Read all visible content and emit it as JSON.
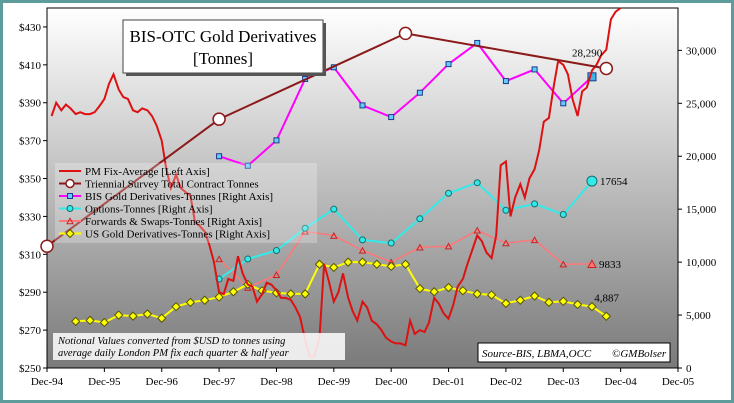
{
  "colors": {
    "plot_top": "#ffffff",
    "plot_bottom": "#7a7a7a",
    "frame": "#5e9b9b",
    "pm_fix": "#dd1111",
    "triennial": "#8b1a1a",
    "bis": "#ff00ff",
    "options": "#33eaea",
    "forwards": "#ff7777",
    "us": "#ffff00"
  },
  "chart_data": {
    "type": "line",
    "title": "BIS-OTC Gold Derivatives",
    "subtitle": "[Tonnes]",
    "left_axis": {
      "min": 250,
      "max": 440,
      "ticks": [
        "$250",
        "$270",
        "$290",
        "$310",
        "$330",
        "$350",
        "$370",
        "$390",
        "$410",
        "$430"
      ]
    },
    "right_axis": {
      "min": 0,
      "max": 34000,
      "ticks": [
        "0",
        "5,000",
        "10,000",
        "15,000",
        "20,000",
        "25,000",
        "30,000"
      ]
    },
    "x_axis": {
      "min": 1994.92,
      "max": 2005.92,
      "ticks": [
        "Dec-94",
        "Dec-95",
        "Dec-96",
        "Dec-97",
        "Dec-98",
        "Dec-99",
        "Dec-00",
        "Dec-01",
        "Dec-02",
        "Dec-03",
        "Dec-04",
        "Dec-05"
      ]
    },
    "grid": false,
    "legend_position": "left-middle",
    "legend": [
      "PM Fix-Average [Left Axis]",
      "Triennial Survey Total Contract Tonnes",
      "BIS Gold Derivatives-Tonnes [Right Axis]",
      "Options-Tonnes [Right Axis]",
      "Forwards & Swaps-Tonnes [Right Axis]",
      "US Gold Derivatives-Tonnes [Right Axis]"
    ],
    "series": [
      {
        "name": "PM Fix-Average [Left Axis]",
        "axis": "left",
        "points": [
          [
            1995.0,
            383
          ],
          [
            1995.08,
            390
          ],
          [
            1995.17,
            386
          ],
          [
            1995.25,
            389
          ],
          [
            1995.33,
            387
          ],
          [
            1995.42,
            384
          ],
          [
            1995.5,
            385
          ],
          [
            1995.58,
            384
          ],
          [
            1995.67,
            384
          ],
          [
            1995.75,
            385
          ],
          [
            1995.83,
            388
          ],
          [
            1995.92,
            392
          ],
          [
            1996.0,
            400
          ],
          [
            1996.08,
            405
          ],
          [
            1996.17,
            397
          ],
          [
            1996.25,
            393
          ],
          [
            1996.33,
            392
          ],
          [
            1996.42,
            386
          ],
          [
            1996.5,
            385
          ],
          [
            1996.58,
            387
          ],
          [
            1996.67,
            386
          ],
          [
            1996.75,
            383
          ],
          [
            1996.83,
            378
          ],
          [
            1996.92,
            370
          ],
          [
            1997.0,
            355
          ],
          [
            1997.08,
            345
          ],
          [
            1997.17,
            352
          ],
          [
            1997.25,
            345
          ],
          [
            1997.33,
            343
          ],
          [
            1997.42,
            341
          ],
          [
            1997.5,
            327
          ],
          [
            1997.58,
            325
          ],
          [
            1997.67,
            322
          ],
          [
            1997.75,
            315
          ],
          [
            1997.83,
            306
          ],
          [
            1997.92,
            290
          ],
          [
            1998.0,
            289
          ],
          [
            1998.08,
            297
          ],
          [
            1998.17,
            296
          ],
          [
            1998.25,
            309
          ],
          [
            1998.33,
            300
          ],
          [
            1998.42,
            294
          ],
          [
            1998.5,
            293
          ],
          [
            1998.58,
            285
          ],
          [
            1998.67,
            289
          ],
          [
            1998.75,
            295
          ],
          [
            1998.83,
            294
          ],
          [
            1998.92,
            291
          ],
          [
            1999.0,
            287
          ],
          [
            1999.08,
            287
          ],
          [
            1999.17,
            286
          ],
          [
            1999.25,
            282
          ],
          [
            1999.33,
            277
          ],
          [
            1999.42,
            265
          ],
          [
            1999.5,
            256
          ],
          [
            1999.58,
            256
          ],
          [
            1999.67,
            266
          ],
          [
            1999.75,
            305
          ],
          [
            1999.83,
            296
          ],
          [
            1999.92,
            285
          ],
          [
            2000.0,
            290
          ],
          [
            2000.08,
            300
          ],
          [
            2000.17,
            287
          ],
          [
            2000.25,
            280
          ],
          [
            2000.33,
            275
          ],
          [
            2000.42,
            285
          ],
          [
            2000.5,
            282
          ],
          [
            2000.58,
            275
          ],
          [
            2000.67,
            273
          ],
          [
            2000.75,
            270
          ],
          [
            2000.83,
            266
          ],
          [
            2000.92,
            264
          ],
          [
            2001.0,
            263
          ],
          [
            2001.08,
            263
          ],
          [
            2001.17,
            262
          ],
          [
            2001.25,
            275
          ],
          [
            2001.33,
            268
          ],
          [
            2001.42,
            270
          ],
          [
            2001.5,
            269
          ],
          [
            2001.58,
            274
          ],
          [
            2001.67,
            287
          ],
          [
            2001.75,
            284
          ],
          [
            2001.83,
            279
          ],
          [
            2001.92,
            276
          ],
          [
            2002.0,
            283
          ],
          [
            2002.08,
            293
          ],
          [
            2002.17,
            297
          ],
          [
            2002.25,
            305
          ],
          [
            2002.33,
            312
          ],
          [
            2002.42,
            320
          ],
          [
            2002.5,
            317
          ],
          [
            2002.58,
            311
          ],
          [
            2002.67,
            308
          ],
          [
            2002.75,
            320
          ],
          [
            2002.83,
            357
          ],
          [
            2002.92,
            359
          ],
          [
            2003.0,
            330
          ],
          [
            2003.08,
            340
          ],
          [
            2003.17,
            347
          ],
          [
            2003.25,
            340
          ],
          [
            2003.33,
            350
          ],
          [
            2003.42,
            355
          ],
          [
            2003.5,
            365
          ],
          [
            2003.58,
            380
          ],
          [
            2003.67,
            382
          ],
          [
            2003.75,
            398
          ],
          [
            2003.83,
            412
          ],
          [
            2003.92,
            410
          ],
          [
            2004.0,
            405
          ],
          [
            2004.08,
            392
          ],
          [
            2004.17,
            383
          ],
          [
            2004.25,
            396
          ],
          [
            2004.33,
            398
          ],
          [
            2004.42,
            407
          ],
          [
            2004.5,
            410
          ],
          [
            2004.58,
            415
          ],
          [
            2004.67,
            418
          ],
          [
            2004.75,
            434
          ],
          [
            2004.83,
            438
          ],
          [
            2004.92,
            440
          ]
        ]
      },
      {
        "name": "Triennial Survey Total Contract Tonnes",
        "axis": "right",
        "annotation": "28,290",
        "points": [
          [
            1994.92,
            11500
          ],
          [
            1997.92,
            23500
          ],
          [
            2001.17,
            31600
          ],
          [
            2004.67,
            28290
          ]
        ]
      },
      {
        "name": "BIS Gold Derivatives-Tonnes [Right Axis]",
        "axis": "right",
        "points": [
          [
            1997.92,
            20000
          ],
          [
            1998.42,
            19100
          ],
          [
            1998.92,
            21500
          ],
          [
            1999.42,
            27300
          ],
          [
            1999.92,
            28400
          ],
          [
            2000.42,
            24800
          ],
          [
            2000.92,
            23700
          ],
          [
            2001.42,
            26000
          ],
          [
            2001.92,
            28700
          ],
          [
            2002.42,
            30700
          ],
          [
            2002.92,
            27100
          ],
          [
            2003.42,
            28200
          ],
          [
            2003.92,
            25000
          ],
          [
            2004.42,
            27500
          ]
        ]
      },
      {
        "name": "Options-Tonnes [Right Axis]",
        "axis": "right",
        "annotation": "17654",
        "points": [
          [
            1997.92,
            8400
          ],
          [
            1998.42,
            10300
          ],
          [
            1998.92,
            11100
          ],
          [
            1999.42,
            13200
          ],
          [
            1999.92,
            15000
          ],
          [
            2000.42,
            12100
          ],
          [
            2000.92,
            11800
          ],
          [
            2001.42,
            14100
          ],
          [
            2001.92,
            16500
          ],
          [
            2002.42,
            17500
          ],
          [
            2002.92,
            14900
          ],
          [
            2003.42,
            15500
          ],
          [
            2003.92,
            14500
          ],
          [
            2004.42,
            17654
          ]
        ]
      },
      {
        "name": "Forwards & Swaps-Tonnes [Right Axis]",
        "axis": "right",
        "annotation": "9833",
        "points": [
          [
            1997.92,
            10300
          ],
          [
            1998.42,
            7600
          ],
          [
            1998.92,
            8800
          ],
          [
            1999.42,
            12900
          ],
          [
            1999.92,
            12500
          ],
          [
            2000.42,
            11100
          ],
          [
            2000.92,
            10000
          ],
          [
            2001.42,
            11400
          ],
          [
            2001.92,
            11500
          ],
          [
            2002.42,
            13000
          ],
          [
            2002.92,
            11800
          ],
          [
            2003.42,
            12100
          ],
          [
            2003.92,
            9800
          ],
          [
            2004.42,
            9833
          ]
        ]
      },
      {
        "name": "US Gold Derivatives-Tonnes [Right Axis]",
        "axis": "right",
        "annotation": "4,887",
        "points": [
          [
            1995.42,
            4400
          ],
          [
            1995.67,
            4500
          ],
          [
            1995.92,
            4300
          ],
          [
            1996.17,
            5000
          ],
          [
            1996.42,
            4900
          ],
          [
            1996.67,
            5100
          ],
          [
            1996.92,
            4700
          ],
          [
            1997.17,
            5800
          ],
          [
            1997.42,
            6200
          ],
          [
            1997.67,
            6400
          ],
          [
            1997.92,
            6700
          ],
          [
            1998.17,
            7200
          ],
          [
            1998.42,
            7900
          ],
          [
            1998.67,
            7300
          ],
          [
            1998.92,
            7100
          ],
          [
            1999.17,
            7000
          ],
          [
            1999.42,
            7000
          ],
          [
            1999.67,
            9800
          ],
          [
            1999.92,
            9500
          ],
          [
            2000.17,
            10000
          ],
          [
            2000.42,
            10000
          ],
          [
            2000.67,
            9800
          ],
          [
            2000.92,
            9600
          ],
          [
            2001.17,
            9800
          ],
          [
            2001.42,
            7500
          ],
          [
            2001.67,
            7200
          ],
          [
            2001.92,
            7600
          ],
          [
            2002.17,
            7300
          ],
          [
            2002.42,
            7000
          ],
          [
            2002.67,
            6900
          ],
          [
            2002.92,
            6100
          ],
          [
            2003.17,
            6400
          ],
          [
            2003.42,
            6800
          ],
          [
            2003.67,
            6200
          ],
          [
            2003.92,
            6300
          ],
          [
            2004.17,
            6000
          ],
          [
            2004.42,
            5800
          ],
          [
            2004.67,
            4887
          ]
        ]
      }
    ],
    "notes": {
      "notional": [
        "Notional Values converted from $USD to tonnes using",
        "average daily London PM fix each quarter & half year"
      ],
      "source": "Source-BIS, LBMA,OCC",
      "copyright": "©GMBolser"
    }
  }
}
